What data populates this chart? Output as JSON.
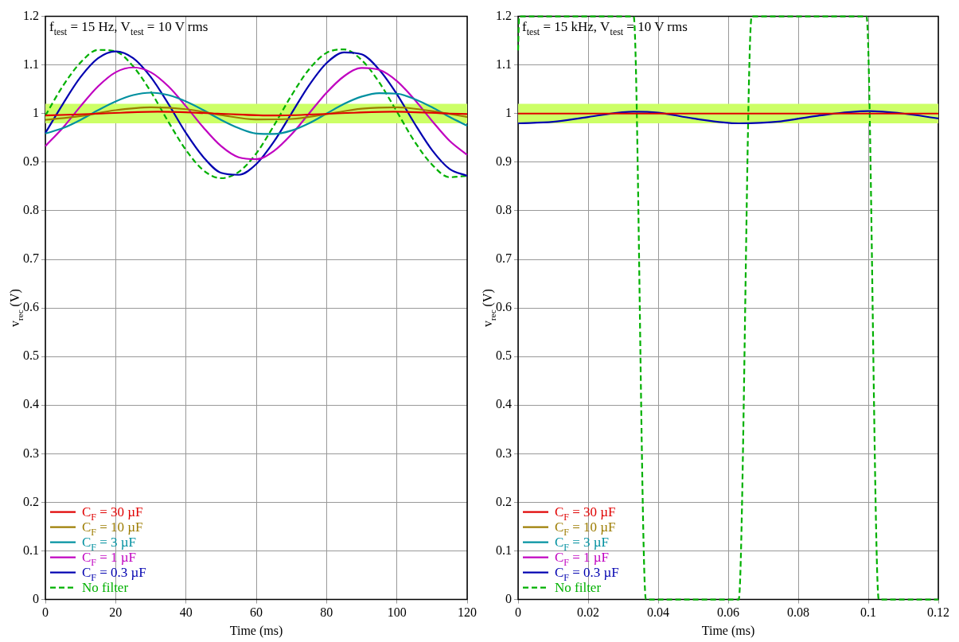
{
  "chart_data": [
    {
      "type": "line",
      "xlabel": "Time (ms)",
      "ylabel": "v$_{rec}$ (V)",
      "annotations": [
        "f$_{test}$ = 15 Hz, V$_{test}$ = 10 V rms"
      ],
      "xlim": [
        0,
        120
      ],
      "xticks": [
        0,
        20,
        40,
        60,
        80,
        100,
        120
      ],
      "ylim": [
        0,
        1.2
      ],
      "yticks": [
        0,
        0.1,
        0.2,
        0.3,
        0.4,
        0.5,
        0.6,
        0.7,
        0.8,
        0.9,
        1,
        1.1,
        1.2
      ],
      "grid": true,
      "legend": "bottom left",
      "marker": "none",
      "bands": [
        {
          "axis": "y",
          "from": 0.98,
          "to": 1.02,
          "color": "#ccff66"
        }
      ],
      "series": [
        {
          "name": "C$_{F}$ = 30 µF",
          "color": "#e00000",
          "line_style": "solid",
          "x": [
            0,
            16,
            32,
            49,
            65,
            82,
            99,
            115,
            120
          ],
          "values": [
            0.996,
            1.0,
            1.004,
            1.0,
            0.996,
            1.0,
            1.004,
            1.0,
            0.999
          ]
        },
        {
          "name": "C$_{F}$ = 10 µF",
          "color": "#9c7c00",
          "line_style": "solid",
          "x": [
            0,
            10,
            20,
            30,
            40,
            50,
            60,
            70,
            80,
            90,
            100,
            110,
            120
          ],
          "values": [
            0.987,
            0.995,
            1.007,
            1.013,
            1.009,
            0.997,
            0.988,
            0.989,
            0.999,
            1.01,
            1.013,
            1.005,
            0.993
          ]
        },
        {
          "name": "C$_{F}$ = 3 µF",
          "color": "#0090a0",
          "line_style": "solid",
          "x": [
            0,
            5,
            10,
            15,
            20,
            25,
            30,
            35,
            40,
            45,
            50,
            55,
            60,
            65,
            70,
            75,
            80,
            85,
            90,
            95,
            100,
            105,
            110,
            115,
            120
          ],
          "values": [
            0.959,
            0.97,
            0.987,
            1.007,
            1.025,
            1.038,
            1.043,
            1.038,
            1.025,
            1.007,
            0.987,
            0.97,
            0.959,
            0.958,
            0.965,
            0.98,
            1.0,
            1.02,
            1.035,
            1.042,
            1.041,
            1.03,
            1.013,
            0.993,
            0.975
          ]
        },
        {
          "name": "C$_{F}$ = 1 µF",
          "color": "#c000c0",
          "line_style": "solid",
          "x": [
            0,
            5,
            10,
            15,
            20,
            25,
            30,
            35,
            40,
            45,
            50,
            55,
            60,
            65,
            70,
            75,
            80,
            85,
            90,
            95,
            100,
            105,
            110,
            115,
            120
          ],
          "values": [
            0.933,
            0.971,
            1.015,
            1.056,
            1.085,
            1.095,
            1.085,
            1.056,
            1.015,
            0.971,
            0.933,
            0.91,
            0.906,
            0.923,
            0.957,
            1.0,
            1.043,
            1.077,
            1.094,
            1.09,
            1.067,
            1.029,
            0.985,
            0.944,
            0.915
          ]
        },
        {
          "name": "C$_{F}$ = 0.3 µF",
          "color": "#0000b0",
          "line_style": "solid",
          "x": [
            0,
            5,
            10,
            15,
            20,
            25,
            30,
            35,
            40,
            45,
            50,
            55,
            60,
            65,
            70,
            75,
            80,
            85,
            90,
            95,
            100,
            105,
            110,
            115,
            120
          ],
          "values": [
            0.96,
            1.02,
            1.075,
            1.114,
            1.128,
            1.114,
            1.075,
            1.02,
            0.96,
            0.91,
            0.878,
            0.874,
            0.896,
            0.942,
            1.0,
            1.058,
            1.104,
            1.126,
            1.122,
            1.09,
            1.04,
            0.98,
            0.925,
            0.886,
            0.872
          ]
        },
        {
          "name": "No filter",
          "color": "#00b000",
          "line_style": "dashed",
          "x": [
            0,
            5,
            10,
            15,
            20,
            25,
            30,
            35,
            40,
            45,
            50,
            55,
            60,
            65,
            70,
            75,
            80,
            85,
            90,
            95,
            100,
            105,
            110,
            115,
            120
          ],
          "values": [
            0.996,
            1.057,
            1.105,
            1.131,
            1.128,
            1.097,
            1.045,
            0.983,
            0.925,
            0.883,
            0.867,
            0.88,
            0.918,
            0.975,
            1.037,
            1.091,
            1.125,
            1.132,
            1.11,
            1.064,
            1.004,
            0.943,
            0.895,
            0.869,
            0.872
          ]
        }
      ]
    },
    {
      "type": "line",
      "xlabel": "Time (ms)",
      "ylabel": "v$_{rec}$ (V)",
      "annotations": [
        "f$_{test}$ = 15 kHz, V$_{test}$ = 10 V rms"
      ],
      "xlim": [
        0,
        0.12
      ],
      "xticks": [
        0,
        0.02,
        0.04,
        0.06,
        0.08,
        0.1,
        0.12
      ],
      "ylim": [
        0,
        1.2
      ],
      "yticks": [
        0,
        0.1,
        0.2,
        0.3,
        0.4,
        0.5,
        0.6,
        0.7,
        0.8,
        0.9,
        1,
        1.1,
        1.2
      ],
      "grid": true,
      "legend": "bottom left",
      "marker": "none",
      "bands": [
        {
          "axis": "y",
          "from": 0.98,
          "to": 1.02,
          "color": "#ccff66"
        }
      ],
      "series": [
        {
          "name": "C$_{F}$ = 30 µF",
          "color": "#e00000",
          "line_style": "solid",
          "x": [
            0,
            0.12
          ],
          "values": [
            1.0,
            1.0
          ]
        },
        {
          "name": "C$_{F}$ = 10 µF",
          "color": "#9c7c00",
          "line_style": "solid"
        },
        {
          "name": "C$_{F}$ = 3 µF",
          "color": "#0090a0",
          "line_style": "solid"
        },
        {
          "name": "C$_{F}$ = 1 µF",
          "color": "#c000c0",
          "line_style": "solid"
        },
        {
          "name": "C$_{F}$ = 0.3 µF",
          "color": "#0000b0",
          "line_style": "solid",
          "x": [
            0,
            0.01,
            0.02,
            0.033,
            0.04,
            0.05,
            0.063,
            0.075,
            0.085,
            0.1,
            0.11,
            0.12
          ],
          "values": [
            0.98,
            0.983,
            0.993,
            1.004,
            1.002,
            0.99,
            0.98,
            0.984,
            0.995,
            1.005,
            1.0,
            0.99
          ]
        },
        {
          "name": "No filter",
          "color": "#00b000",
          "line_style": "dashed",
          "x": [
            0,
            0.0003,
            0.033,
            0.0365,
            0.063,
            0.0667,
            0.0995,
            0.103,
            0.12
          ],
          "values": [
            1.13,
            1.2,
            1.2,
            0,
            0,
            1.2,
            1.2,
            0,
            0
          ]
        }
      ]
    }
  ]
}
